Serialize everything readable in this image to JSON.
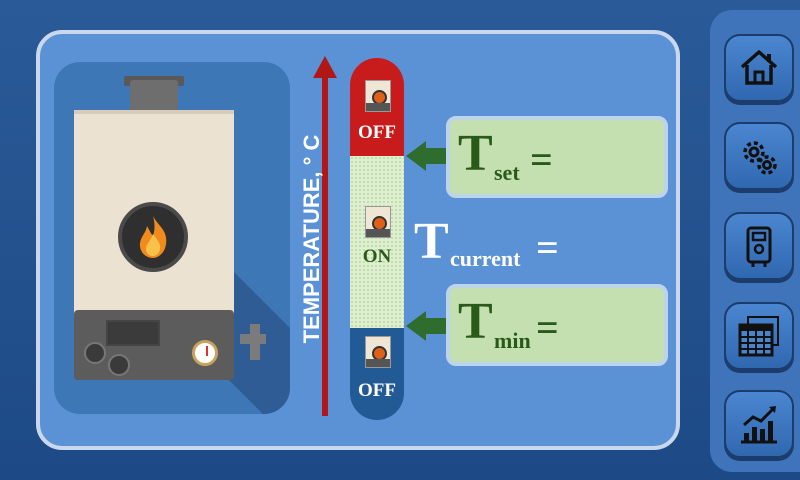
{
  "axis": {
    "label": "TEMPERATURE, ° C"
  },
  "states": {
    "top": "OFF",
    "middle": "ON",
    "bottom": "OFF"
  },
  "tset": {
    "letter": "T",
    "sub": "set",
    "eq": "="
  },
  "tcurrent": {
    "letter": "T",
    "sub": "current",
    "eq": "="
  },
  "tmin": {
    "letter": "T",
    "sub": "min",
    "eq": "="
  },
  "sidebar": {
    "items": [
      {
        "icon": "home-icon"
      },
      {
        "icon": "gears-icon"
      },
      {
        "icon": "boiler-device-icon"
      },
      {
        "icon": "calendar-icon"
      },
      {
        "icon": "chart-icon"
      }
    ]
  },
  "colors": {
    "accent_red": "#c81c1c",
    "accent_green": "#2e6d2e",
    "panel_blue": "#5b92d6",
    "dark_blue": "#225a96"
  }
}
